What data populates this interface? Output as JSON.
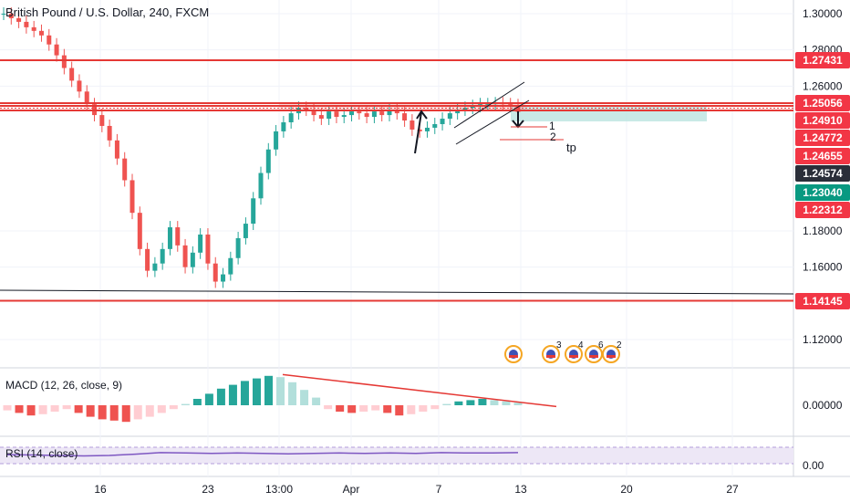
{
  "header": {
    "title": "British Pound / U.S. Dollar, 240, FXCM"
  },
  "macd": {
    "label": "MACD (12, 26, close, 9)",
    "axis_label": "0.00000"
  },
  "rsi": {
    "label": "RSI (14, close)",
    "axis_label": "0.00"
  },
  "annotations": {
    "target_1": "1",
    "target_2": "2",
    "take_profit": "tp"
  },
  "events": {
    "badges": [
      "3",
      "4",
      "6",
      "2"
    ]
  },
  "colors": {
    "bull": "#26a69a",
    "bear": "#ef5350",
    "level_line": "#e53935",
    "badge_red": "#f23645",
    "badge_dark": "#2a2e39",
    "badge_teal": "#089981",
    "target_zone": "#b2dfdb",
    "rsi_band": "#ede7f6",
    "rsi_line": "#7e57c2"
  },
  "chart_data": {
    "type": "candlestick",
    "title": "British Pound / U.S. Dollar, 240, FXCM",
    "y_axis_ticks": [
      1.3,
      1.28,
      1.26,
      1.18,
      1.16,
      1.12
    ],
    "ylim": [
      1.108,
      1.302
    ],
    "x_axis_ticks": [
      "16",
      "23",
      "13:00",
      "Apr",
      "7",
      "13",
      "20",
      "27"
    ],
    "price_labels": [
      {
        "value": "1.27431",
        "style": "level"
      },
      {
        "value": "1.25056",
        "style": "level"
      },
      {
        "value": "1.24910",
        "style": "level"
      },
      {
        "value": "1.24772",
        "style": "level"
      },
      {
        "value": "1.24655",
        "style": "level"
      },
      {
        "value": "1.24574",
        "style": "last"
      },
      {
        "value": "1.23040",
        "style": "teal"
      },
      {
        "value": "1.22312",
        "style": "level"
      },
      {
        "value": "1.14145",
        "style": "level"
      }
    ],
    "horizontal_levels": [
      1.27431,
      1.25056,
      1.2491,
      1.24655,
      1.14145
    ],
    "close_path": [
      1.3,
      1.2975,
      1.2955,
      1.2925,
      1.2905,
      1.288,
      1.283,
      1.277,
      1.27,
      1.263,
      1.257,
      1.25,
      1.244,
      1.238,
      1.23,
      1.22,
      1.208,
      1.19,
      1.17,
      1.158,
      1.162,
      1.17,
      1.182,
      1.172,
      1.16,
      1.168,
      1.178,
      1.162,
      1.152,
      1.156,
      1.165,
      1.176,
      1.184,
      1.198,
      1.212,
      1.225,
      1.235,
      1.24,
      1.245,
      1.248,
      1.247,
      1.244,
      1.242,
      1.246,
      1.243,
      1.244,
      1.246,
      1.245,
      1.243,
      1.246,
      1.244,
      1.247,
      1.245,
      1.241,
      1.236,
      1.235,
      1.237,
      1.239,
      1.242,
      1.245,
      1.247,
      1.248,
      1.249,
      1.25,
      1.25,
      1.2505,
      1.25,
      1.2495,
      1.2457
    ],
    "macd_histogram": [
      -0.4,
      -0.6,
      -0.8,
      -0.7,
      -0.5,
      -0.3,
      -0.6,
      -0.9,
      -1.1,
      -1.2,
      -1.3,
      -1.1,
      -0.9,
      -0.6,
      -0.3,
      0.1,
      0.5,
      0.9,
      1.3,
      1.6,
      1.9,
      2.1,
      2.3,
      2.2,
      1.8,
      1.2,
      0.6,
      -0.3,
      -0.5,
      -0.6,
      -0.5,
      -0.4,
      -0.6,
      -0.8,
      -0.7,
      -0.5,
      -0.3,
      0.1,
      0.3,
      0.4,
      0.5,
      0.4,
      0.3,
      0.2
    ],
    "macd_trendline": [
      2.4,
      -0.1
    ],
    "rsi_values": [
      52,
      51,
      50,
      49,
      50,
      53,
      57,
      56,
      55,
      56,
      55,
      54,
      55,
      56,
      55,
      56,
      55,
      57,
      56,
      56,
      57
    ],
    "target_zone": [
      1.2405,
      1.249
    ],
    "grid": true,
    "legend": "none"
  }
}
